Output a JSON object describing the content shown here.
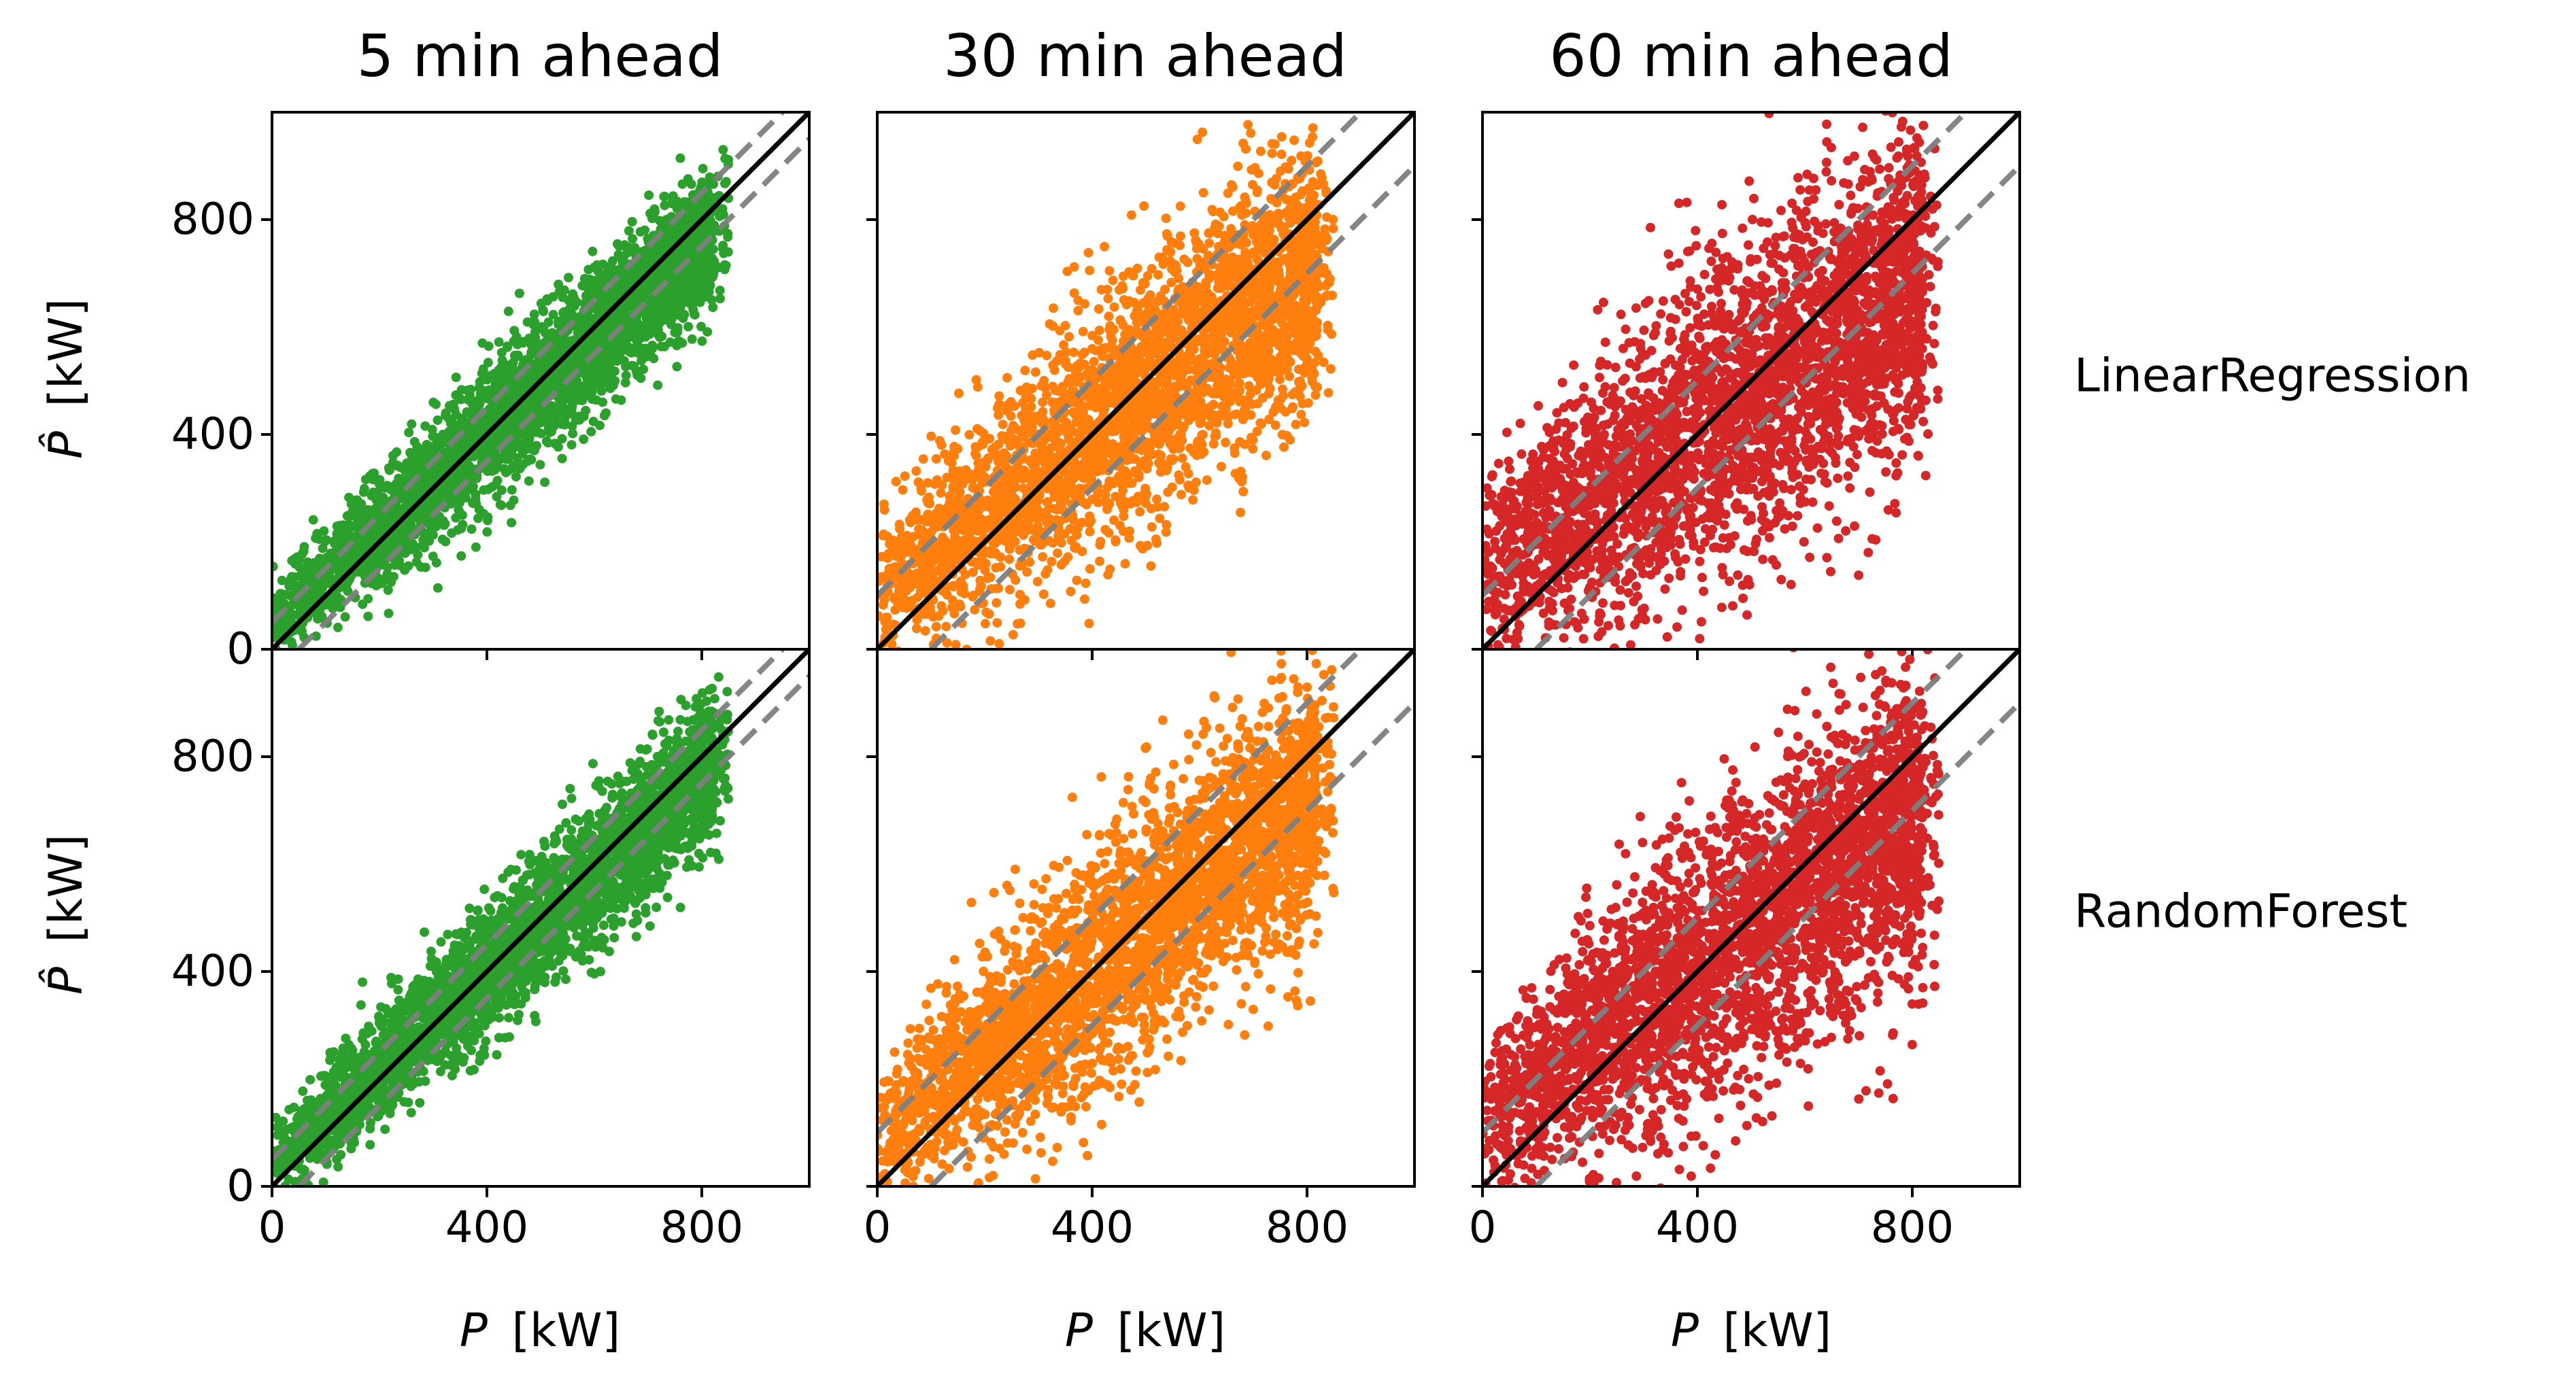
{
  "figure": {
    "type": "scatter-grid",
    "columns": [
      "5 min ahead",
      "30 min ahead",
      "60 min ahead"
    ],
    "rows": [
      "LinearRegression",
      "RandomForest"
    ]
  },
  "colors": {
    "5 min ahead": "#2ca02c",
    "30 min ahead": "#ff7f0e",
    "60 min ahead": "#d62728",
    "identity_line": "#000000",
    "band_line": "#7f7f7f"
  },
  "axes": {
    "x_label_var": "P",
    "x_label_unit": "[kW]",
    "y_label_var": "P̂",
    "y_label_unit": "[kW]",
    "xticks": [
      0,
      400,
      800
    ],
    "yticks": [
      0,
      400,
      800
    ]
  },
  "chart_data": [
    {
      "type": "scatter",
      "row": "LinearRegression",
      "column": "5 min ahead",
      "color": "#2ca02c",
      "xlim": [
        0,
        1000
      ],
      "ylim": [
        0,
        1000
      ],
      "xlabel": "",
      "ylabel": "P̂ [kW]",
      "identity_line": "y = x",
      "band_offset": 50,
      "n_points": 3200,
      "spread": 65,
      "shrink": 0.88
    },
    {
      "type": "scatter",
      "row": "LinearRegression",
      "column": "30 min ahead",
      "color": "#ff7f0e",
      "xlim": [
        0,
        1000
      ],
      "ylim": [
        0,
        1000
      ],
      "xlabel": "",
      "ylabel": "",
      "identity_line": "y = x",
      "band_offset": 100,
      "n_points": 3200,
      "spread": 120,
      "shrink": 0.75
    },
    {
      "type": "scatter",
      "row": "LinearRegression",
      "column": "60 min ahead",
      "color": "#d62728",
      "xlim": [
        0,
        1000
      ],
      "ylim": [
        0,
        1000
      ],
      "xlabel": "",
      "ylabel": "",
      "identity_line": "y = x",
      "band_offset": 100,
      "n_points": 3200,
      "spread": 150,
      "shrink": 0.66
    },
    {
      "type": "scatter",
      "row": "RandomForest",
      "column": "5 min ahead",
      "color": "#2ca02c",
      "xlim": [
        0,
        1000
      ],
      "ylim": [
        0,
        1000
      ],
      "xlabel": "P [kW]",
      "ylabel": "P̂ [kW]",
      "identity_line": "y = x",
      "band_offset": 50,
      "n_points": 3200,
      "spread": 65,
      "shrink": 0.9
    },
    {
      "type": "scatter",
      "row": "RandomForest",
      "column": "30 min ahead",
      "color": "#ff7f0e",
      "xlim": [
        0,
        1000
      ],
      "ylim": [
        0,
        1000
      ],
      "xlabel": "P [kW]",
      "ylabel": "",
      "identity_line": "y = x",
      "band_offset": 100,
      "n_points": 3200,
      "spread": 115,
      "shrink": 0.78
    },
    {
      "type": "scatter",
      "row": "RandomForest",
      "column": "60 min ahead",
      "color": "#d62728",
      "xlim": [
        0,
        1000
      ],
      "ylim": [
        0,
        1000
      ],
      "xlabel": "P [kW]",
      "ylabel": "",
      "identity_line": "y = x",
      "band_offset": 100,
      "n_points": 3200,
      "spread": 140,
      "shrink": 0.7
    }
  ]
}
